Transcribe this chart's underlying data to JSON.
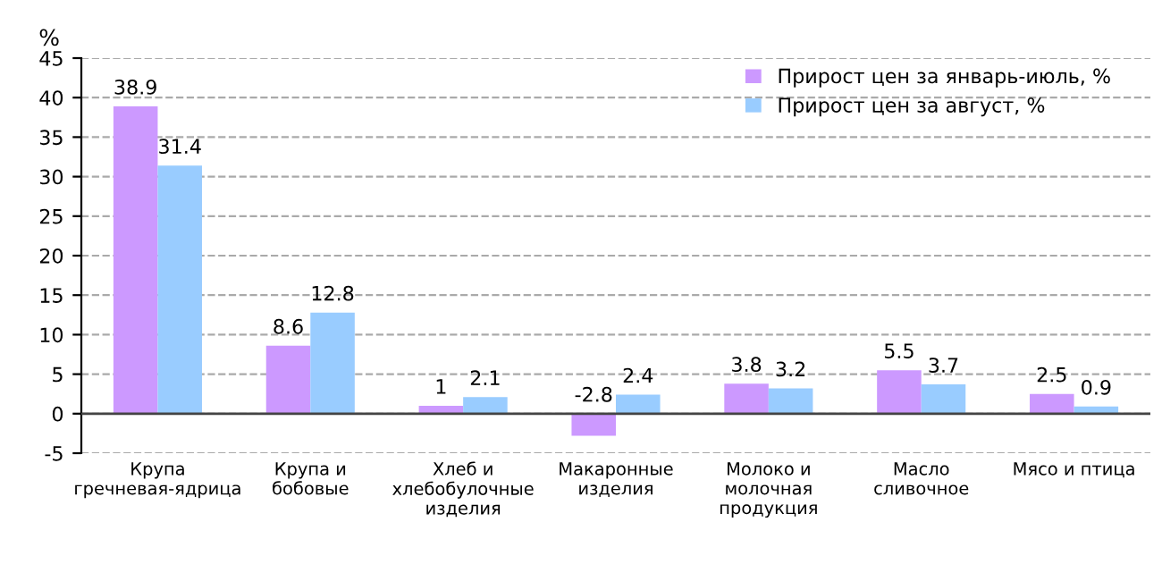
{
  "chart_data": {
    "type": "bar",
    "ylabel": "%",
    "categories": [
      "Крупа гречневая-ядрица",
      "Крупа и бобовые",
      "Хлеб и хлебобулочные изделия",
      "Макаронные изделия",
      "Молоко и молочная продукция",
      "Масло сливочное",
      "Мясо и птица"
    ],
    "series": [
      {
        "name": "Прирост цен за январь-июль, %",
        "color": "#cc99ff",
        "values": [
          38.9,
          8.6,
          1,
          -2.8,
          3.8,
          5.5,
          2.5
        ]
      },
      {
        "name": "Прирост цен за август, %",
        "color": "#99ccff",
        "values": [
          31.4,
          12.8,
          2.1,
          2.4,
          3.2,
          3.7,
          0.9
        ]
      }
    ],
    "ylim": [
      -5,
      45
    ],
    "yticks": [
      -5,
      0,
      5,
      10,
      15,
      20,
      25,
      30,
      35,
      40,
      45
    ],
    "grid": "y",
    "legend": "top right",
    "data_labels": true
  }
}
